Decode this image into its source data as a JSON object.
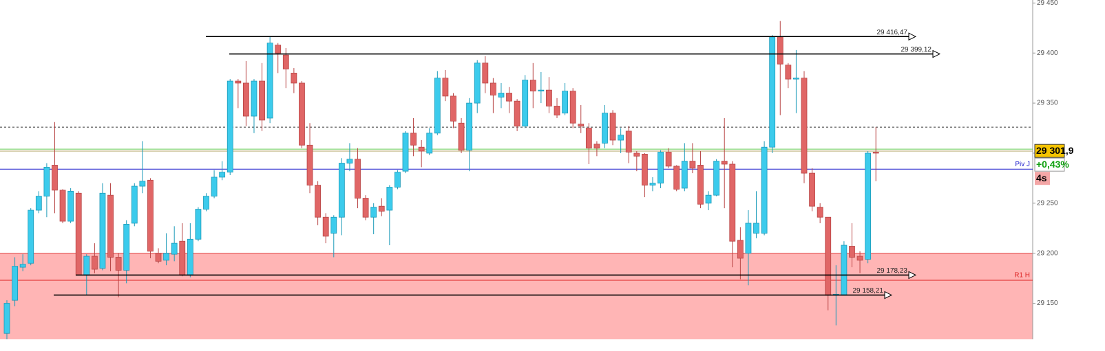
{
  "chart_data": {
    "type": "candlestick",
    "ylim": [
      29114,
      29453
    ],
    "yticks": [
      {
        "value": 29150,
        "label": "29 150"
      },
      {
        "value": 29200,
        "label": "29 200"
      },
      {
        "value": 29250,
        "label": "29 250"
      },
      {
        "value": 29300,
        "label": "29 300"
      },
      {
        "value": 29350,
        "label": "29 350"
      },
      {
        "value": 29400,
        "label": "29 400"
      },
      {
        "value": 29450,
        "label": "29 450"
      }
    ],
    "up_color": "#3ccbec",
    "down_color": "#e06666",
    "open": [
      29120,
      29153,
      29186,
      29190,
      29243,
      29257,
      29288,
      29263,
      29232,
      29260,
      29178,
      29197,
      29185,
      29258,
      29196,
      29183,
      29230,
      29267,
      29273,
      29200,
      29193,
      29199,
      29212,
      29178,
      29214,
      29244,
      29257,
      29276,
      29281,
      29372,
      29370,
      29337,
      29372,
      29335,
      29408,
      29398,
      29380,
      29370,
      29308,
      29268,
      29236,
      29220,
      29236,
      29290,
      29294,
      29255,
      29236,
      29247,
      29243,
      29266,
      29282,
      29320,
      29306,
      29300,
      29320,
      29375,
      29357,
      29330,
      29303,
      29350,
      29390,
      29370,
      29356,
      29360,
      29352,
      29327,
      29373,
      29362,
      29363,
      29347,
      29340,
      29362,
      29329,
      29325,
      29309,
      29310,
      29340,
      29313,
      29322,
      29300,
      29299,
      29268,
      29270,
      29301,
      29287,
      29265,
      29292,
      29288,
      29250,
      29258,
      29292,
      29289,
      29213,
      29200,
      29220,
      29220,
      29306,
      29416,
      29388,
      29374,
      29375,
      29280,
      29246,
      29236,
      29158,
      29158,
      29207,
      29197,
      29194,
      29301
    ],
    "high": [
      29153,
      29196,
      29199,
      29245,
      29262,
      29290,
      29331,
      29264,
      29265,
      29262,
      29199,
      29210,
      29270,
      29270,
      29200,
      29233,
      29270,
      29312,
      29275,
      29205,
      29220,
      29227,
      29230,
      29230,
      29246,
      29260,
      29283,
      29292,
      29374,
      29374,
      29392,
      29374,
      29390,
      29417,
      29410,
      29405,
      29385,
      29372,
      29330,
      29272,
      29240,
      29238,
      29295,
      29310,
      29305,
      29258,
      29250,
      29255,
      29268,
      29283,
      29322,
      29335,
      29313,
      29325,
      29382,
      29383,
      29360,
      29335,
      29355,
      29393,
      29397,
      29375,
      29370,
      29366,
      29354,
      29378,
      29390,
      29381,
      29376,
      29355,
      29370,
      29365,
      29348,
      29330,
      29312,
      29348,
      29343,
      29325,
      29327,
      29302,
      29300,
      29276,
      29303,
      29305,
      29288,
      29310,
      29310,
      29302,
      29262,
      29294,
      29335,
      29292,
      29226,
      29243,
      29262,
      29312,
      29418,
      29432,
      29390,
      29403,
      29382,
      29285,
      29250,
      29236,
      29188,
      29212,
      29230,
      29202,
      29302,
      29326
    ],
    "low": [
      29114,
      29147,
      29182,
      29188,
      29240,
      29236,
      29240,
      29230,
      29230,
      29178,
      29158,
      29180,
      29183,
      29182,
      29156,
      29170,
      29227,
      29260,
      29195,
      29190,
      29188,
      29192,
      29177,
      29176,
      29212,
      29242,
      29255,
      29273,
      29278,
      29345,
      29327,
      29320,
      29322,
      29330,
      29380,
      29365,
      29360,
      29305,
      29260,
      29228,
      29210,
      29196,
      29218,
      29282,
      29245,
      29233,
      29219,
      29237,
      29208,
      29264,
      29280,
      29297,
      29286,
      29298,
      29318,
      29352,
      29325,
      29300,
      29282,
      29340,
      29360,
      29340,
      29345,
      29340,
      29322,
      29325,
      29345,
      29350,
      29340,
      29335,
      29338,
      29325,
      29320,
      29289,
      29297,
      29305,
      29308,
      29300,
      29290,
      29282,
      29256,
      29262,
      29265,
      29285,
      29262,
      29262,
      29280,
      29245,
      29243,
      29257,
      29245,
      29186,
      29174,
      29168,
      29215,
      29218,
      29300,
      29338,
      29365,
      29340,
      29270,
      29242,
      29230,
      29143,
      29128,
      29158,
      29186,
      29180,
      29190,
      29272
    ],
    "close": [
      29150,
      29187,
      29189,
      29243,
      29257,
      29286,
      29263,
      29232,
      29262,
      29178,
      29197,
      29184,
      29260,
      29196,
      29183,
      29229,
      29267,
      29272,
      29202,
      29192,
      29200,
      29210,
      29178,
      29214,
      29244,
      29257,
      29276,
      29281,
      29372,
      29370,
      29337,
      29372,
      29333,
      29410,
      29400,
      29384,
      29370,
      29308,
      29268,
      29236,
      29217,
      29236,
      29290,
      29294,
      29255,
      29236,
      29246,
      29242,
      29266,
      29281,
      29320,
      29308,
      29302,
      29320,
      29375,
      29357,
      29332,
      29303,
      29350,
      29390,
      29370,
      29358,
      29360,
      29352,
      29327,
      29373,
      29362,
      29363,
      29347,
      29338,
      29362,
      29330,
      29327,
      29305,
      29305,
      29340,
      29313,
      29318,
      29301,
      29297,
      29268,
      29270,
      29301,
      29287,
      29264,
      29292,
      29285,
      29249,
      29258,
      29292,
      29289,
      29212,
      29195,
      29230,
      29230,
      29306,
      29416,
      29389,
      29374,
      29375,
      29280,
      29247,
      29236,
      29158,
      29159,
      29208,
      29196,
      29193,
      29300,
      29300
    ],
    "levels": [
      {
        "value": 29416.47,
        "label": "29 416,47",
        "color": "#000000"
      },
      {
        "value": 29399.12,
        "label": "29 399,12",
        "color": "#000000"
      },
      {
        "value": 29178.23,
        "label": "29 178,23",
        "color": "#000000"
      },
      {
        "value": 29158.21,
        "label": "29 158,21",
        "color": "#000000"
      }
    ],
    "pivots": [
      {
        "value": 29284,
        "label": "Piv J",
        "color": "#1a1acc"
      },
      {
        "value": 29173,
        "label": "R1 H",
        "color": "#dd2222"
      }
    ],
    "zone": {
      "top": 29200,
      "color": "#ffb5b5"
    },
    "dashed_level": 29326,
    "guide_lines": [
      {
        "value": 29304,
        "color": "#66cc55"
      },
      {
        "value": 29302,
        "color": "#b0a060"
      }
    ],
    "price": {
      "value": 29301.9,
      "label": "29 301,9"
    },
    "change": "+0,43%",
    "timer": "4s"
  }
}
